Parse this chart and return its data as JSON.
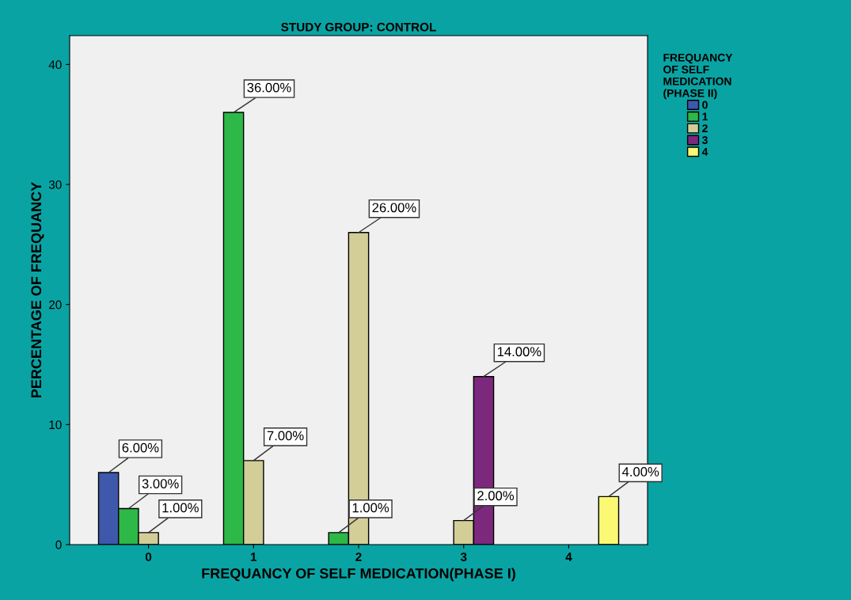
{
  "chart_data": {
    "type": "bar",
    "title": "STUDY GROUP: CONTROL",
    "xlabel": "FREQUANCY OF SELF MEDICATION(PHASE I)",
    "ylabel": "PERCENTAGE OF FREQUANCY",
    "legend_title": "FREQUANCY\nOF SELF\nMEDICATION\n(PHASE II)",
    "categories": [
      "0",
      "1",
      "2",
      "3",
      "4"
    ],
    "series": [
      {
        "name": "0",
        "color": "#3e58ac",
        "values": [
          6,
          null,
          null,
          null,
          null
        ],
        "value_labels": [
          "6.00%",
          null,
          null,
          null,
          null
        ]
      },
      {
        "name": "1",
        "color": "#2eb848",
        "values": [
          3,
          36,
          1,
          null,
          null
        ],
        "value_labels": [
          "3.00%",
          "36.00%",
          "1.00%",
          null,
          null
        ]
      },
      {
        "name": "2",
        "color": "#d3ce97",
        "values": [
          1,
          7,
          26,
          2,
          null
        ],
        "value_labels": [
          "1.00%",
          "7.00%",
          "26.00%",
          "2.00%",
          null
        ]
      },
      {
        "name": "3",
        "color": "#7c287d",
        "values": [
          null,
          null,
          null,
          14,
          null
        ],
        "value_labels": [
          null,
          null,
          null,
          "14.00%",
          null
        ]
      },
      {
        "name": "4",
        "color": "#fbf873",
        "values": [
          null,
          null,
          null,
          null,
          4
        ],
        "value_labels": [
          null,
          null,
          null,
          null,
          "4.00%"
        ]
      }
    ],
    "ylim": [
      0,
      42.4
    ],
    "yticks": [
      0,
      10,
      20,
      30,
      40
    ],
    "grid": false,
    "legend": "right"
  }
}
